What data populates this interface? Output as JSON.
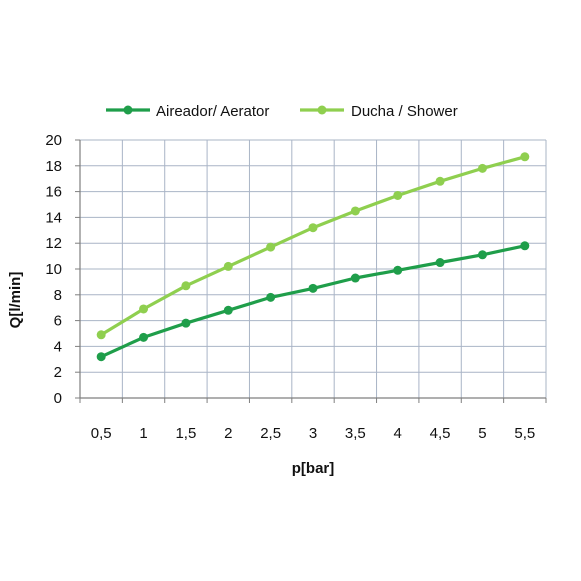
{
  "chart_data": {
    "type": "line",
    "x": [
      0.5,
      1,
      1.5,
      2,
      2.5,
      3,
      3.5,
      4,
      4.5,
      5,
      5.5
    ],
    "x_tick_labels": [
      "0,5",
      "1",
      "1,5",
      "2",
      "2,5",
      "3",
      "3,5",
      "4",
      "4,5",
      "5",
      "5,5"
    ],
    "y_ticks": [
      0,
      2,
      4,
      6,
      8,
      10,
      12,
      14,
      16,
      18,
      20
    ],
    "ylim": [
      0,
      20
    ],
    "xlabel": "p[bar]",
    "ylabel": "Q[l/min]",
    "grid": true,
    "legend_position": "top",
    "series": [
      {
        "name": "Aireador/ Aerator",
        "color": "#1f9e4a",
        "values": [
          3.2,
          4.7,
          5.8,
          6.8,
          7.8,
          8.5,
          9.3,
          9.9,
          10.5,
          11.1,
          11.8
        ]
      },
      {
        "name": "Ducha / Shower",
        "color": "#8fcf4f",
        "values": [
          4.9,
          6.9,
          8.7,
          10.2,
          11.7,
          13.2,
          14.5,
          15.7,
          16.8,
          17.8,
          18.7
        ]
      }
    ],
    "colors": {
      "grid": "#a9b4c6",
      "axis": "#7f7f7f",
      "plot_border": "#a9b4c6"
    }
  }
}
